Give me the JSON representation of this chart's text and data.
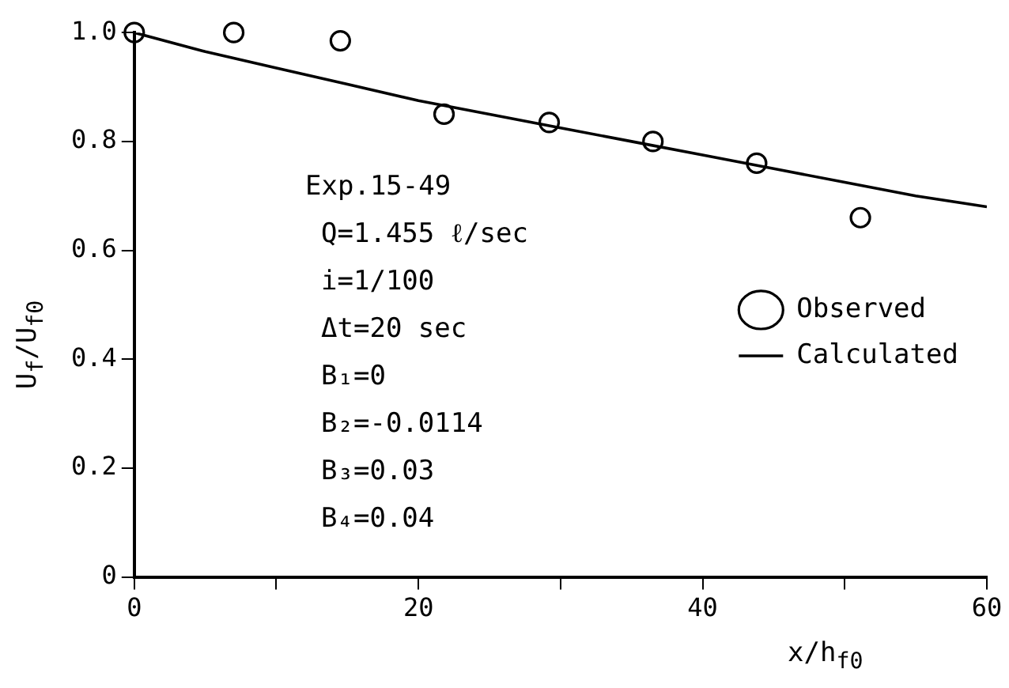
{
  "chart_data": {
    "type": "line",
    "xlabel": "x/h$_{f0}$",
    "ylabel": "U$_{f}$/U$_{f0}$",
    "xlim": [
      0,
      60
    ],
    "ylim": [
      0,
      1.0
    ],
    "xticks": [
      0,
      {
        "value": 10,
        "label": null
      },
      20,
      {
        "value": 30,
        "label": null
      },
      40,
      {
        "value": 50,
        "label": null
      },
      60
    ],
    "yticks": [
      0,
      0.2,
      0.4,
      0.6,
      0.8,
      {
        "value": 1.0,
        "label": "1.0"
      }
    ],
    "grid": false,
    "legend": "right",
    "annotations": [
      "Exp.15-49",
      "Q=1.455 ℓ/sec",
      "i=1/100",
      "Δt=20 sec",
      "B₁=0",
      "B₂=-0.0114",
      "B₃=0.03",
      "B₄=0.04"
    ],
    "series": [
      {
        "name": "Observed",
        "type": "scatter",
        "marker": "circle",
        "color": "#000000",
        "x": [
          0,
          7,
          14.5,
          21.8,
          29.2,
          36.5,
          43.8,
          51.1
        ],
        "values": [
          1.0,
          1.0,
          0.985,
          0.85,
          0.835,
          0.8,
          0.76,
          0.66
        ]
      },
      {
        "name": "Calculated",
        "color": "#000000",
        "line_style": "solid",
        "x": [
          0,
          5,
          10,
          15,
          20,
          25,
          30,
          35,
          40,
          45,
          50,
          55,
          60
        ],
        "values": [
          1.0,
          0.965,
          0.935,
          0.905,
          0.875,
          0.85,
          0.825,
          0.8,
          0.775,
          0.75,
          0.725,
          0.7,
          0.68
        ]
      }
    ]
  }
}
